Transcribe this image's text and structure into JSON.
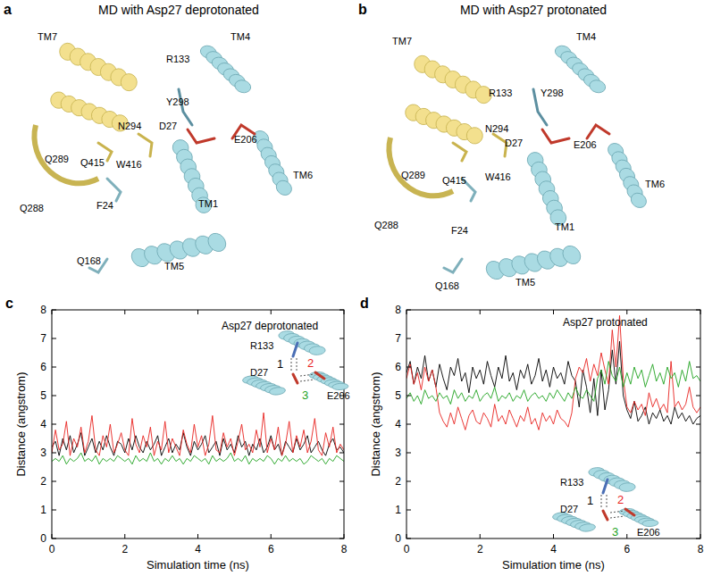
{
  "panels": [
    {
      "letter": "a",
      "title": "MD with Asp27 deprotonated",
      "labels": [
        "TM7",
        "Y298",
        "R133",
        "TM4",
        "N294",
        "D27",
        "E206",
        "Q289",
        "Q415",
        "W416",
        "TM6",
        "Q288",
        "F24",
        "TM1",
        "Q168",
        "TM5"
      ]
    },
    {
      "letter": "b",
      "title": "MD with Asp27 protonated",
      "labels": [
        "TM7",
        "Y298",
        "R133",
        "TM4",
        "N294",
        "D27",
        "E206",
        "Q289",
        "Q415",
        "W416",
        "TM6",
        "Q288",
        "F24",
        "TM1",
        "Q168",
        "TM5"
      ]
    }
  ],
  "chart_data": [
    {
      "type": "line",
      "panel": "c",
      "title": "Asp27 deprotonated",
      "x_label": "Simulation time (ns)",
      "y_label": "Distance (angstrom)",
      "annotations": [
        "R133",
        "D27",
        "E206"
      ],
      "xlim": [
        0,
        8
      ],
      "ylim": [
        0,
        8
      ],
      "xticks": [
        0,
        2,
        4,
        6,
        8
      ],
      "yticks": [
        0,
        1,
        2,
        3,
        4,
        5,
        6,
        7,
        8
      ],
      "x": [
        0,
        0.1,
        0.2,
        0.3,
        0.4,
        0.5,
        0.6,
        0.7,
        0.8,
        0.9,
        1,
        1.1,
        1.2,
        1.3,
        1.4,
        1.5,
        1.6,
        1.7,
        1.8,
        1.9,
        2,
        2.1,
        2.2,
        2.3,
        2.4,
        2.5,
        2.6,
        2.7,
        2.8,
        2.9,
        3,
        3.1,
        3.2,
        3.3,
        3.4,
        3.5,
        3.6,
        3.7,
        3.8,
        3.9,
        4,
        4.1,
        4.2,
        4.3,
        4.4,
        4.5,
        4.6,
        4.7,
        4.8,
        4.9,
        5,
        5.1,
        5.2,
        5.3,
        5.4,
        5.5,
        5.6,
        5.7,
        5.8,
        5.9,
        6,
        6.1,
        6.2,
        6.3,
        6.4,
        6.5,
        6.6,
        6.7,
        6.8,
        6.9,
        7,
        7.1,
        7.2,
        7.3,
        7.4,
        7.5,
        7.6,
        7.7,
        7.8,
        7.9,
        8
      ],
      "series": [
        {
          "name": "1",
          "color": "#000000",
          "values": [
            3.2,
            3.4,
            2.9,
            3.5,
            3.1,
            3.6,
            3.0,
            3.3,
            3.7,
            2.9,
            3.2,
            3.5,
            3.0,
            3.4,
            3.1,
            3.6,
            3.2,
            2.9,
            3.4,
            3.3,
            3.0,
            3.5,
            3.1,
            3.6,
            3.2,
            3.0,
            3.4,
            3.1,
            3.3,
            3.6,
            2.9,
            3.2,
            3.5,
            3.0,
            3.3,
            3.1,
            3.7,
            3.2,
            2.9,
            3.4,
            3.1,
            3.3,
            3.6,
            3.0,
            3.2,
            3.4,
            2.9,
            3.5,
            3.1,
            3.3,
            3.0,
            3.6,
            3.2,
            3.4,
            2.9,
            3.3,
            3.1,
            3.5,
            3.0,
            3.2,
            3.6,
            3.1,
            3.3,
            2.9,
            3.4,
            3.2,
            3.0,
            3.5,
            3.1,
            3.3,
            3.6,
            3.0,
            3.2,
            3.4,
            3.1,
            2.9,
            3.3,
            3.5,
            3.1,
            3.2,
            3.0
          ]
        },
        {
          "name": "2",
          "color": "#e8231f",
          "values": [
            3.0,
            3.8,
            3.1,
            3.3,
            4.1,
            2.9,
            3.5,
            3.2,
            3.9,
            3.0,
            3.4,
            4.3,
            3.1,
            2.9,
            3.6,
            3.2,
            4.0,
            3.0,
            3.3,
            3.7,
            3.1,
            2.9,
            4.2,
            3.3,
            3.0,
            3.6,
            3.2,
            3.9,
            2.9,
            3.4,
            3.1,
            4.1,
            3.0,
            3.5,
            3.2,
            2.9,
            3.8,
            3.3,
            3.0,
            4.0,
            3.2,
            3.6,
            2.9,
            3.3,
            4.3,
            3.1,
            3.0,
            3.7,
            3.2,
            3.5,
            2.9,
            3.4,
            4.0,
            3.1,
            3.3,
            3.0,
            3.8,
            3.2,
            4.4,
            3.0,
            3.5,
            3.1,
            3.9,
            2.9,
            3.3,
            4.1,
            3.0,
            3.6,
            3.2,
            3.8,
            3.0,
            3.4,
            4.2,
            3.1,
            2.9,
            3.7,
            3.2,
            3.9,
            3.0,
            3.3,
            3.1
          ]
        },
        {
          "name": "3",
          "color": "#1fa31f",
          "values": [
            2.7,
            2.8,
            2.7,
            2.9,
            2.6,
            2.8,
            2.7,
            2.8,
            3.0,
            2.7,
            2.8,
            2.7,
            2.9,
            2.6,
            2.8,
            2.7,
            2.8,
            2.7,
            2.9,
            2.8,
            2.7,
            2.8,
            2.6,
            2.9,
            2.7,
            2.8,
            2.7,
            3.0,
            2.7,
            2.8,
            2.6,
            2.8,
            2.7,
            2.9,
            2.7,
            2.8,
            2.6,
            2.8,
            2.7,
            2.9,
            2.8,
            2.7,
            2.8,
            2.6,
            2.9,
            2.7,
            2.8,
            2.7,
            2.8,
            3.0,
            2.7,
            2.8,
            2.7,
            2.9,
            2.6,
            2.8,
            2.7,
            2.8,
            2.7,
            2.9,
            2.8,
            2.6,
            2.8,
            2.7,
            2.9,
            2.7,
            2.8,
            2.7,
            2.8,
            2.6,
            2.7,
            2.9,
            2.8,
            2.7,
            2.8,
            2.6,
            2.8,
            2.7,
            2.9,
            2.8,
            2.7
          ]
        }
      ]
    },
    {
      "type": "line",
      "panel": "d",
      "title": "Asp27 protonated",
      "x_label": "Simulation time (ns)",
      "y_label": "Distance (angstrom)",
      "annotations": [
        "R133",
        "D27",
        "E206"
      ],
      "xlim": [
        0,
        8
      ],
      "ylim": [
        0,
        8
      ],
      "xticks": [
        0,
        2,
        4,
        6,
        8
      ],
      "yticks": [
        0,
        1,
        2,
        3,
        4,
        5,
        6,
        7,
        8
      ],
      "x": [
        0,
        0.1,
        0.2,
        0.3,
        0.4,
        0.5,
        0.6,
        0.7,
        0.8,
        0.9,
        1,
        1.1,
        1.2,
        1.3,
        1.4,
        1.5,
        1.6,
        1.7,
        1.8,
        1.9,
        2,
        2.1,
        2.2,
        2.3,
        2.4,
        2.5,
        2.6,
        2.7,
        2.8,
        2.9,
        3,
        3.1,
        3.2,
        3.3,
        3.4,
        3.5,
        3.6,
        3.7,
        3.8,
        3.9,
        4,
        4.1,
        4.2,
        4.3,
        4.4,
        4.5,
        4.6,
        4.7,
        4.8,
        4.9,
        5,
        5.1,
        5.2,
        5.3,
        5.4,
        5.5,
        5.6,
        5.7,
        5.8,
        5.9,
        6,
        6.1,
        6.2,
        6.3,
        6.4,
        6.5,
        6.6,
        6.7,
        6.8,
        6.9,
        7,
        7.1,
        7.2,
        7.3,
        7.4,
        7.5,
        7.6,
        7.7,
        7.8,
        7.9,
        8
      ],
      "series": [
        {
          "name": "1",
          "color": "#000000",
          "values": [
            5.8,
            6.2,
            5.4,
            6.0,
            5.6,
            6.4,
            5.5,
            5.9,
            5.3,
            6.1,
            5.6,
            5.2,
            6.0,
            5.7,
            6.3,
            5.5,
            5.8,
            5.1,
            6.0,
            5.6,
            5.9,
            5.4,
            6.2,
            5.7,
            5.3,
            6.0,
            5.6,
            6.4,
            5.5,
            5.8,
            5.2,
            5.9,
            5.6,
            6.1,
            5.4,
            5.7,
            6.3,
            5.5,
            5.9,
            5.3,
            6.0,
            5.6,
            5.8,
            5.4,
            6.2,
            5.7,
            5.5,
            4.6,
            5.9,
            5.3,
            4.4,
            5.6,
            4.3,
            5.9,
            4.5,
            5.2,
            6.6,
            5.4,
            6.9,
            5.0,
            4.5,
            4.2,
            4.8,
            4.1,
            4.3,
            4.6,
            4.0,
            4.4,
            4.2,
            4.5,
            4.1,
            4.3,
            4.0,
            4.6,
            4.2,
            4.4,
            4.1,
            4.3,
            4.0,
            4.2,
            4.3
          ]
        },
        {
          "name": "2",
          "color": "#e8231f",
          "values": [
            5.6,
            6.1,
            5.4,
            5.8,
            5.2,
            6.0,
            5.5,
            5.9,
            5.3,
            4.4,
            4.1,
            3.9,
            4.4,
            4.0,
            4.6,
            4.2,
            3.8,
            4.3,
            4.5,
            4.1,
            4.0,
            4.4,
            4.2,
            3.9,
            4.7,
            4.1,
            4.3,
            4.0,
            4.5,
            4.2,
            3.9,
            4.3,
            4.1,
            4.6,
            4.0,
            4.2,
            3.8,
            4.4,
            4.1,
            4.3,
            4.0,
            4.5,
            4.2,
            4.1,
            3.9,
            4.4,
            5.6,
            6.0,
            5.8,
            6.3,
            5.5,
            6.1,
            5.7,
            6.5,
            5.9,
            5.4,
            7.3,
            6.0,
            7.8,
            5.6,
            4.6,
            4.4,
            4.8,
            4.5,
            4.7,
            4.3,
            5.1,
            4.6,
            4.9,
            4.5,
            4.7,
            4.4,
            6.2,
            4.6,
            4.8,
            4.5,
            4.7,
            5.3,
            4.6,
            4.4,
            4.6
          ]
        },
        {
          "name": "3",
          "color": "#1fa31f",
          "values": [
            4.9,
            5.1,
            4.8,
            5.0,
            4.7,
            5.2,
            4.9,
            5.0,
            4.8,
            5.1,
            4.9,
            5.0,
            4.7,
            5.2,
            4.9,
            5.1,
            4.8,
            5.0,
            4.9,
            5.2,
            4.8,
            5.0,
            5.1,
            4.9,
            5.3,
            4.8,
            5.0,
            4.9,
            5.1,
            4.8,
            5.0,
            4.9,
            5.2,
            4.8,
            5.0,
            5.1,
            4.9,
            5.0,
            4.8,
            5.1,
            4.9,
            5.2,
            5.0,
            4.8,
            5.1,
            4.9,
            5.3,
            5.0,
            4.9,
            5.2,
            5.0,
            4.8,
            5.6,
            5.9,
            5.4,
            6.2,
            5.7,
            5.5,
            6.0,
            5.3,
            5.8,
            5.4,
            6.0,
            5.6,
            5.9,
            5.3,
            5.7,
            6.1,
            5.5,
            5.8,
            5.4,
            6.0,
            5.6,
            5.8,
            5.3,
            5.9,
            5.5,
            6.2,
            5.6,
            5.7,
            5.5
          ]
        }
      ]
    }
  ]
}
